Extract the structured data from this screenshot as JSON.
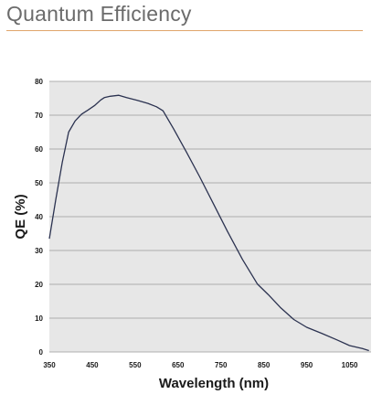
{
  "page": {
    "title": "Quantum Efficiency"
  },
  "colors": {
    "title_text": "#6b6b6b",
    "title_rule": "#e0a56b",
    "plot_background": "#e7e7e7",
    "gridline": "#9a9a9a",
    "series_line": "#2b3250",
    "axis_text": "#1a1a1a"
  },
  "chart_data": {
    "type": "line",
    "title": "",
    "xlabel": "Wavelength (nm)",
    "ylabel": "QE (%)",
    "xlim": [
      350,
      1100
    ],
    "ylim": [
      0,
      80
    ],
    "x_ticks": [
      350,
      450,
      550,
      650,
      750,
      850,
      950,
      1050
    ],
    "y_ticks": [
      0,
      10,
      20,
      30,
      40,
      50,
      60,
      70,
      80
    ],
    "grid": "horizontal",
    "legend": "none",
    "series": [
      {
        "name": "",
        "x": [
          350,
          365,
          380,
          395,
          410,
          425,
          440,
          455,
          470,
          478,
          492,
          512,
          530,
          555,
          580,
          600,
          615,
          640,
          670,
          700,
          735,
          765,
          800,
          835,
          860,
          890,
          920,
          950,
          985,
          1020,
          1050,
          1080,
          1095
        ],
        "y": [
          33.5,
          45,
          56,
          65,
          68.3,
          70.3,
          71.5,
          72.8,
          74.5,
          75.2,
          75.6,
          75.9,
          75.2,
          74.4,
          73.5,
          72.5,
          71.3,
          65.9,
          59.0,
          51.9,
          43.2,
          35.7,
          27.4,
          20.1,
          17.0,
          13.0,
          9.6,
          7.3,
          5.5,
          3.6,
          1.9,
          1.0,
          0.4
        ]
      }
    ]
  }
}
